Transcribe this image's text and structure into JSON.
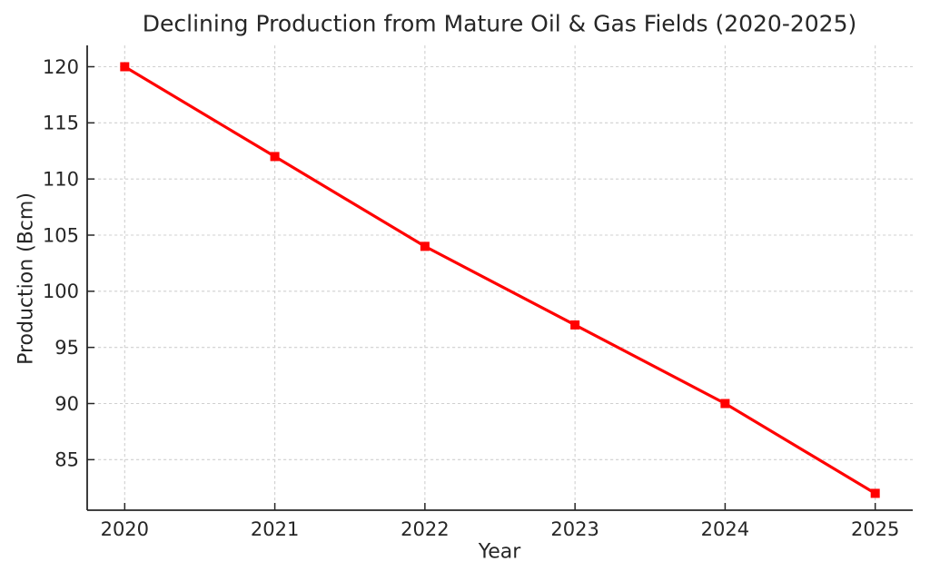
{
  "chart_data": {
    "type": "line",
    "title": "Declining Production from Mature Oil & Gas Fields (2020-2025)",
    "xlabel": "Year",
    "ylabel": "Production (Bcm)",
    "x": [
      2020,
      2021,
      2022,
      2023,
      2024,
      2025
    ],
    "series": [
      {
        "name": "Production",
        "values": [
          120,
          112,
          104,
          97,
          90,
          82
        ],
        "color": "#ff0000",
        "marker": "square",
        "line_width": 3.2,
        "marker_size": 10
      }
    ],
    "xticks": [
      2020,
      2021,
      2022,
      2023,
      2024,
      2025
    ],
    "yticks": [
      85,
      90,
      95,
      100,
      105,
      110,
      115,
      120
    ],
    "xlim": [
      2019.75,
      2025.25
    ],
    "ylim": [
      80.5,
      121.9
    ],
    "grid": true,
    "grid_style": "dashed",
    "legend_position": "none",
    "colors": {
      "grid": "#d0d0d0",
      "axis": "#262626",
      "text": "#262626",
      "background": "#ffffff"
    }
  }
}
